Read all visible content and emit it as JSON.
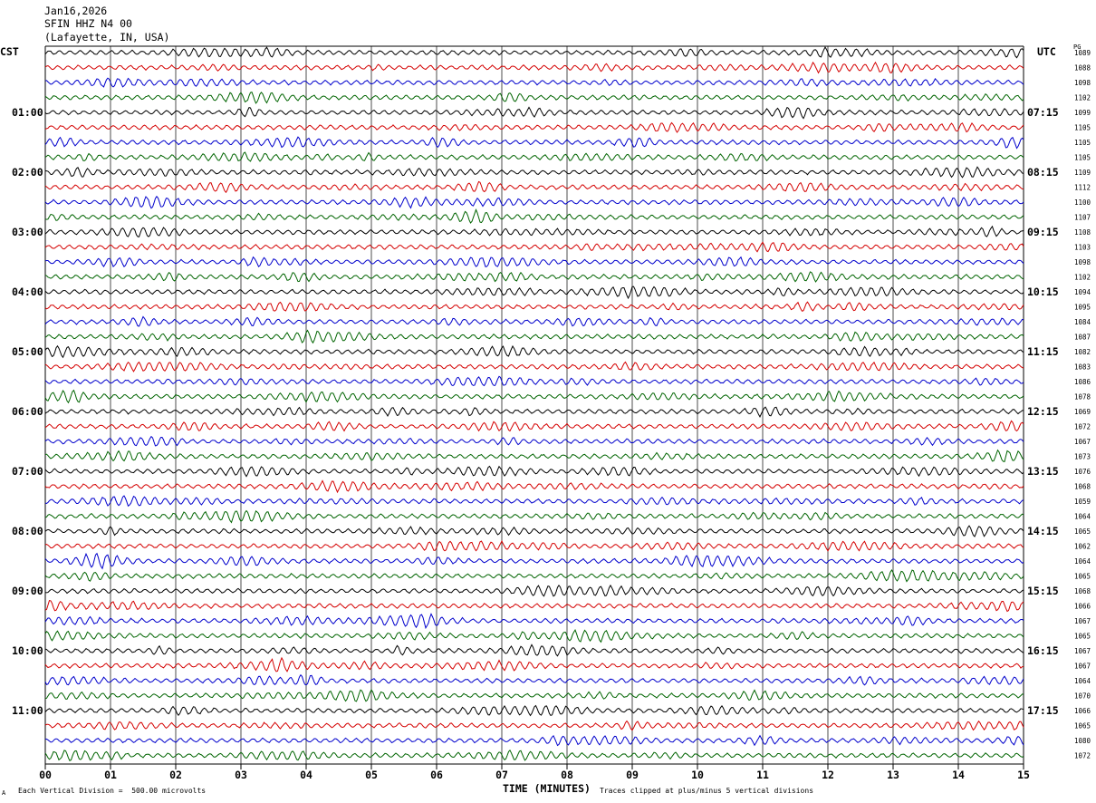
{
  "header": {
    "date": "Jan16,2026",
    "station": "SFIN HHZ N4 00",
    "location": "(Lafayette, IN, USA)"
  },
  "left_timezone": "CST",
  "right_timezone": "UTC",
  "right_column_header": "PG",
  "footer": {
    "scale_note": "Each Vertical Division =  500.00 microvolts",
    "clip_note": "Traces clipped at plus/minus 5 vertical divisions",
    "corner_mark": "A"
  },
  "colors": {
    "trace_cycle": [
      "#000000",
      "#d40000",
      "#0000cc",
      "#006400"
    ],
    "grid": "#000000",
    "frame": "#000000"
  },
  "chart_data": {
    "type": "line",
    "xlabel": "TIME (MINUTES)",
    "x_ticks": [
      "00",
      "01",
      "02",
      "03",
      "04",
      "05",
      "06",
      "07",
      "08",
      "09",
      "10",
      "11",
      "12",
      "13",
      "14",
      "15"
    ],
    "xlim": [
      0,
      15
    ],
    "grid": "vertical lines at each minute",
    "rows_per_hour": 4,
    "left_hour_labels": [
      "",
      "01:00",
      "02:00",
      "03:00",
      "04:00",
      "05:00",
      "06:00",
      "07:00",
      "08:00",
      "09:00",
      "10:00",
      "11:00"
    ],
    "right_hour_labels": [
      "",
      "07:15",
      "08:15",
      "09:15",
      "10:15",
      "11:15",
      "12:15",
      "13:15",
      "14:15",
      "15:15",
      "16:15",
      "17:15"
    ],
    "row_values": [
      1089,
      1088,
      1098,
      1102,
      1099,
      1105,
      1105,
      1105,
      1109,
      1112,
      1100,
      1107,
      1108,
      1103,
      1098,
      1102,
      1094,
      1095,
      1084,
      1087,
      1082,
      1083,
      1086,
      1078,
      1069,
      1072,
      1067,
      1073,
      1076,
      1068,
      1059,
      1064,
      1065,
      1062,
      1064,
      1065,
      1068,
      1066,
      1067,
      1065,
      1067,
      1067,
      1064,
      1070,
      1066,
      1065,
      1080,
      1072
    ]
  }
}
